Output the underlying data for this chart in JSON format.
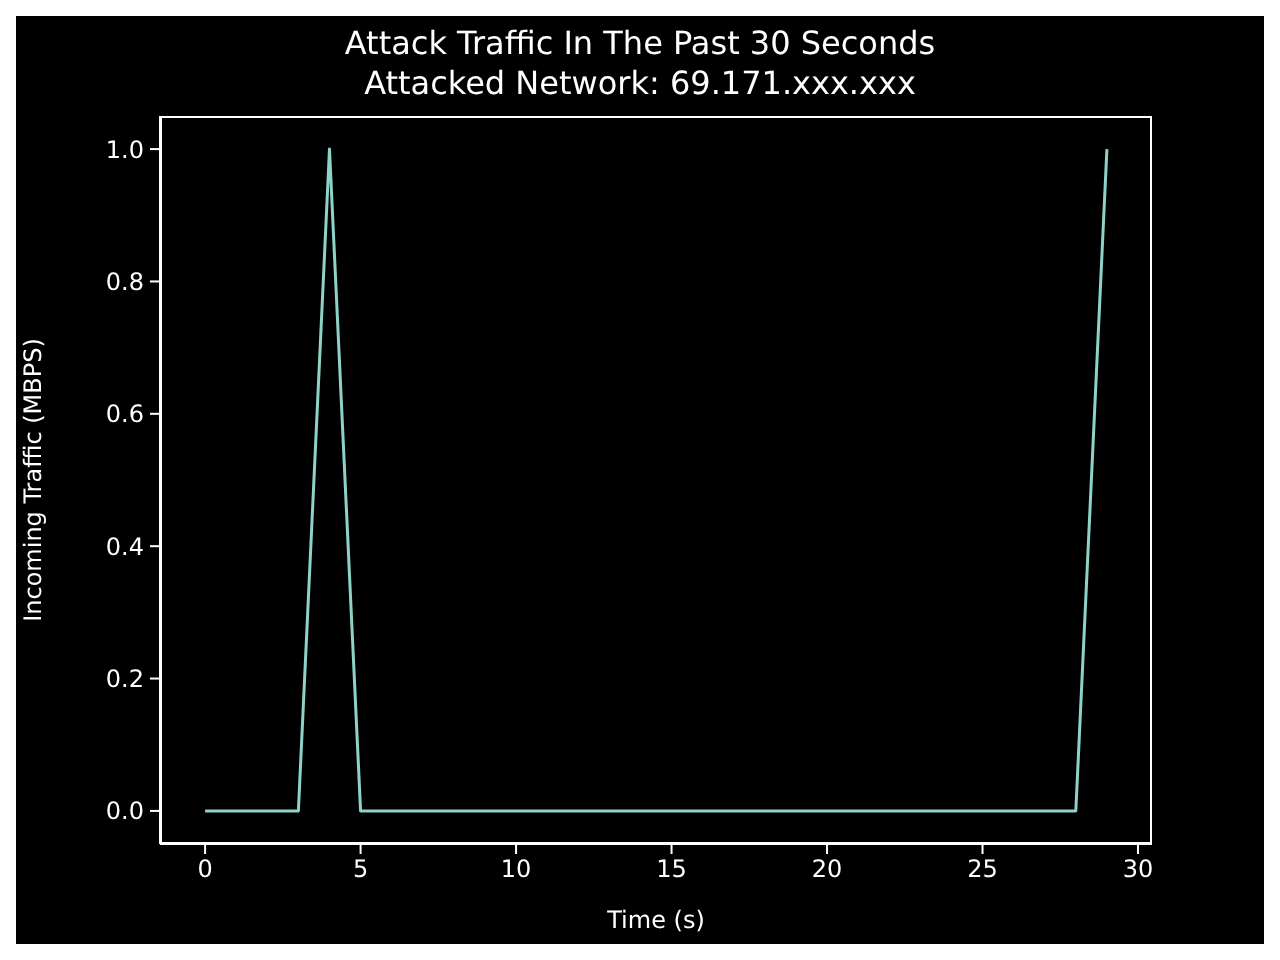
{
  "chart_data": {
    "type": "line",
    "title": "Attack Traffic In The Past 30 Seconds",
    "subtitle": "Attacked Network: 69.171.xxx.xxx",
    "xlabel": "Time (s)",
    "ylabel": "Incoming Traffic (MBPS)",
    "x": [
      0,
      1,
      2,
      3,
      4,
      5,
      6,
      7,
      8,
      9,
      10,
      11,
      12,
      13,
      14,
      15,
      16,
      17,
      18,
      19,
      20,
      21,
      22,
      23,
      24,
      25,
      26,
      27,
      28,
      29
    ],
    "series": [
      {
        "color": "#8dd3c7",
        "values": [
          0,
          0,
          0,
          0,
          1,
          0,
          0,
          0,
          0,
          0,
          0,
          0,
          0,
          0,
          0,
          0,
          0,
          0,
          0,
          0,
          0,
          0,
          0,
          0,
          0,
          0,
          0,
          0,
          0,
          1
        ]
      }
    ],
    "xlim": [
      -1.45,
      30.45
    ],
    "xticks": [
      0,
      5,
      10,
      15,
      20,
      25,
      30
    ],
    "ylim": [
      -0.05,
      1.05
    ],
    "yticks": [
      {
        "value": 0,
        "label": "0.0"
      },
      0.2,
      0.4,
      0.6,
      0.8,
      {
        "value": 1,
        "label": "1.0"
      }
    ],
    "grid": false,
    "legend": false,
    "marker": "none",
    "line_style": "solid"
  }
}
